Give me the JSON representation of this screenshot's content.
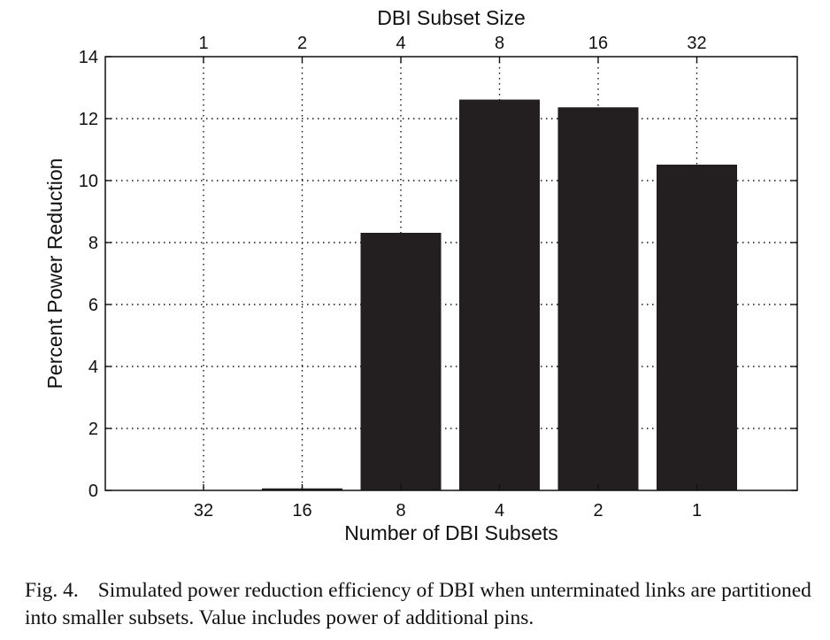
{
  "chart_data": {
    "type": "bar",
    "categories": [
      "32",
      "16",
      "8",
      "4",
      "2",
      "1"
    ],
    "values": [
      0,
      0.05,
      8.3,
      12.6,
      12.35,
      10.5
    ],
    "xlabel": "Number of DBI Subsets",
    "ylabel": "Percent Power Reduction",
    "top_axis_label": "DBI Subset Size",
    "top_categories": [
      "1",
      "2",
      "4",
      "8",
      "16",
      "32"
    ],
    "ylim": [
      0,
      14
    ],
    "yticks": [
      0,
      2,
      4,
      6,
      8,
      10,
      12,
      14
    ],
    "grid": true,
    "grid_style": "dotted",
    "bar_color": "#231f20"
  },
  "caption": {
    "label": "Fig. 4.",
    "text": "Simulated power reduction efficiency of DBI when unterminated links are partitioned into smaller subsets. Value includes power of additional pins."
  }
}
